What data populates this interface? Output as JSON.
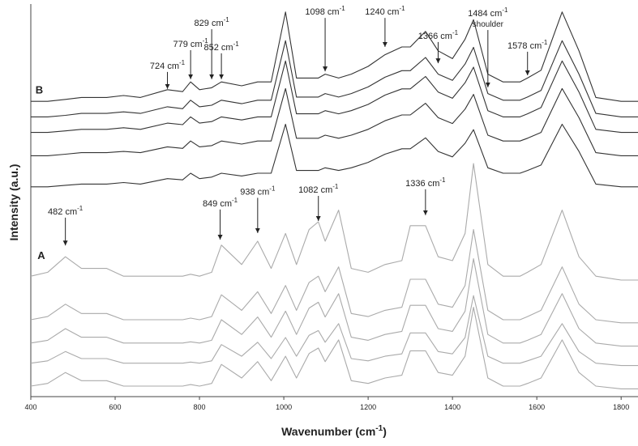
{
  "chart_data": {
    "type": "line",
    "xlabel": {
      "text": "Wavenumber (cm",
      "sup": "-1",
      "tail": ")"
    },
    "ylabel": "Intensity (a.u.)",
    "xlim": [
      400,
      1840
    ],
    "ylim": [
      0,
      100
    ],
    "xticks": [
      400,
      600,
      800,
      1000,
      1200,
      1400,
      1600,
      1800
    ],
    "x": [
      400,
      440,
      482,
      520,
      580,
      620,
      660,
      724,
      760,
      779,
      800,
      829,
      852,
      900,
      938,
      970,
      1004,
      1030,
      1060,
      1082,
      1098,
      1130,
      1160,
      1200,
      1240,
      1280,
      1300,
      1336,
      1366,
      1400,
      1430,
      1450,
      1484,
      1520,
      1560,
      1578,
      1610,
      1660,
      1700,
      1740,
      1800,
      1840
    ],
    "series": [
      {
        "color": "#333333",
        "values": [
          76,
          76,
          76.5,
          77,
          77,
          77.5,
          77,
          79,
          78.5,
          81,
          79,
          79.5,
          81,
          80,
          81,
          81,
          99,
          82,
          82,
          82,
          83,
          82,
          83,
          85,
          88,
          90,
          90,
          94,
          89,
          87,
          92,
          97,
          83,
          81,
          81,
          82,
          84,
          99,
          89,
          77,
          76,
          76
        ]
      },
      {
        "color": "#333333",
        "values": [
          72,
          72,
          72.4,
          72.9,
          72.9,
          73.3,
          72.9,
          74.6,
          74.1,
          76.3,
          74.6,
          75,
          76.3,
          75.4,
          76.3,
          76.3,
          91.6,
          77.1,
          77.1,
          77.1,
          78,
          77.1,
          78,
          79.7,
          82.2,
          83.9,
          83.9,
          87.3,
          83,
          81.4,
          85.6,
          89.9,
          78,
          76.3,
          76.3,
          77.1,
          78.8,
          91.6,
          83,
          72.9,
          72,
          72
        ]
      },
      {
        "color": "#333333",
        "values": [
          68,
          68,
          68.4,
          68.8,
          68.8,
          69.2,
          68.8,
          70.4,
          70,
          72,
          70.4,
          70.8,
          72,
          71.2,
          72,
          72,
          86.4,
          72.8,
          72.8,
          72.8,
          73.6,
          72.8,
          73.6,
          75.2,
          77.6,
          79.2,
          79.2,
          82.4,
          78.4,
          76.8,
          80.8,
          84.8,
          73.6,
          72,
          72,
          72.8,
          74.4,
          86.4,
          78.4,
          68.8,
          68,
          68
        ]
      },
      {
        "color": "#333333",
        "values": [
          62,
          62,
          62.4,
          62.8,
          62.8,
          63.1,
          62.8,
          64.3,
          63.9,
          65.8,
          64.3,
          64.6,
          65.8,
          65,
          65.8,
          65.8,
          79.3,
          66.5,
          66.5,
          66.5,
          67.3,
          66.5,
          67.3,
          68.8,
          71,
          72.5,
          72.5,
          75.5,
          71.8,
          70.3,
          74,
          77.8,
          67.3,
          65.8,
          65.8,
          66.5,
          68,
          79.3,
          71.8,
          62.8,
          62,
          62
        ]
      },
      {
        "color": "#333333",
        "values": [
          54,
          54,
          54.4,
          54.7,
          54.7,
          55.1,
          54.7,
          56.1,
          55.8,
          57.5,
          56.1,
          56.5,
          57.5,
          56.8,
          57.5,
          57.5,
          70.1,
          58.2,
          58.2,
          58.2,
          58.9,
          58.2,
          58.9,
          60.3,
          62.4,
          63.8,
          63.8,
          66.6,
          63.1,
          61.7,
          65.2,
          68.7,
          58.9,
          57.5,
          57.5,
          58.2,
          59.6,
          70.1,
          63.1,
          54.7,
          54,
          54
        ]
      },
      {
        "color": "#aaaaaa",
        "values": [
          31,
          32,
          36,
          33,
          33,
          31,
          31,
          31,
          31,
          31.5,
          31,
          32,
          39,
          34,
          40,
          33,
          42,
          34,
          43,
          45,
          40,
          48,
          33,
          32,
          34,
          35,
          44,
          44,
          36,
          35,
          42,
          60,
          34,
          31,
          31,
          32,
          34,
          48,
          36,
          31,
          30,
          30
        ]
      },
      {
        "color": "#aaaaaa",
        "values": [
          19.8,
          20.6,
          23.8,
          21.4,
          21.4,
          19.8,
          19.8,
          19.8,
          19.8,
          20.2,
          19.8,
          20.6,
          26.2,
          22.2,
          27,
          21.4,
          28.6,
          22.2,
          29.4,
          31,
          27,
          33.4,
          21.4,
          20.6,
          22.2,
          23,
          30.2,
          30.2,
          23.8,
          23,
          28.6,
          43,
          22.2,
          19.8,
          19.8,
          20.6,
          22.2,
          33.4,
          23.8,
          19.8,
          19,
          19
        ]
      },
      {
        "color": "#aaaaaa",
        "values": [
          13.8,
          14.5,
          17.5,
          15.3,
          15.3,
          13.8,
          13.8,
          13.8,
          13.8,
          14.1,
          13.8,
          14.5,
          19.8,
          16,
          20.5,
          15.3,
          22,
          16,
          22.8,
          24.3,
          20.5,
          26.5,
          15.3,
          14.5,
          16,
          16.8,
          23.5,
          23.5,
          17.5,
          16.8,
          22,
          35.5,
          16,
          13.8,
          13.8,
          14.5,
          16,
          26.5,
          17.5,
          13.8,
          13,
          13
        ]
      },
      {
        "color": "#aaaaaa",
        "values": [
          8.6,
          9.2,
          11.6,
          9.8,
          9.8,
          8.6,
          8.6,
          8.6,
          8.6,
          8.9,
          8.6,
          9.2,
          13.4,
          10.4,
          14,
          9.8,
          15.2,
          10.4,
          15.8,
          17,
          14,
          18.8,
          9.8,
          9.2,
          10.4,
          11,
          16.4,
          16.4,
          11.6,
          11,
          15.2,
          26,
          10.4,
          8.6,
          8.6,
          9.2,
          10.4,
          18.8,
          11.6,
          8.6,
          8,
          8
        ]
      },
      {
        "color": "#aaaaaa",
        "values": [
          2.7,
          3.4,
          6.2,
          4.1,
          4.1,
          2.7,
          2.7,
          2.7,
          2.7,
          3.1,
          2.7,
          3.4,
          8.3,
          4.8,
          9,
          4.1,
          10.4,
          4.8,
          11.1,
          12.5,
          9,
          14.6,
          4.1,
          3.4,
          4.8,
          5.5,
          11.8,
          11.8,
          6.2,
          5.5,
          10.4,
          23,
          4.8,
          2.7,
          2.7,
          3.4,
          4.8,
          14.6,
          6.2,
          2.7,
          2,
          2
        ]
      }
    ],
    "groups": [
      {
        "text": "B",
        "x": 420,
        "y": 78
      },
      {
        "text": "A",
        "x": 425,
        "y": 35.4
      }
    ],
    "annotations": [
      {
        "text": "724 cm",
        "sup": "-1",
        "x": 724,
        "y": 78.8,
        "y_text": 84.4
      },
      {
        "text": "779 cm",
        "sup": "-1",
        "x": 779,
        "y": 81.3,
        "y_text": 90
      },
      {
        "text": "829 cm",
        "sup": "-1",
        "x": 829,
        "y": 81.3,
        "y_text": 95.4
      },
      {
        "text": "852 cm",
        "sup": "-1",
        "x": 852,
        "y": 81.3,
        "y_text": 89.2
      },
      {
        "text": "1098 cm",
        "sup": "-1",
        "x": 1098,
        "y": 83.3,
        "y_text": 98.3
      },
      {
        "text": "1240 cm",
        "sup": "-1",
        "x": 1240,
        "y": 89.6,
        "y_text": 98.3
      },
      {
        "text": "1366 cm",
        "sup": "-1",
        "x": 1366,
        "y": 85.4,
        "y_text": 92.1
      },
      {
        "text": "1484 cm",
        "sup": "-1",
        "note": "shoulder",
        "x": 1484,
        "y": 79.2,
        "y_text": 97.9
      },
      {
        "text": "1578 cm",
        "sup": "-1",
        "x": 1578,
        "y": 82.3,
        "y_text": 89.6
      },
      {
        "text": "482 cm",
        "sup": "-1",
        "x": 482,
        "y": 38.5,
        "y_text": 46.9
      },
      {
        "text": "849 cm",
        "sup": "-1",
        "x": 849,
        "y": 40,
        "y_text": 49
      },
      {
        "text": "938 cm",
        "sup": "-1",
        "x": 938,
        "y": 41.7,
        "y_text": 52
      },
      {
        "text": "1082 cm",
        "sup": "-1",
        "x": 1082,
        "y": 44.8,
        "y_text": 52.5
      },
      {
        "text": "1336 cm",
        "sup": "-1",
        "x": 1336,
        "y": 46.3,
        "y_text": 54.2
      }
    ]
  }
}
